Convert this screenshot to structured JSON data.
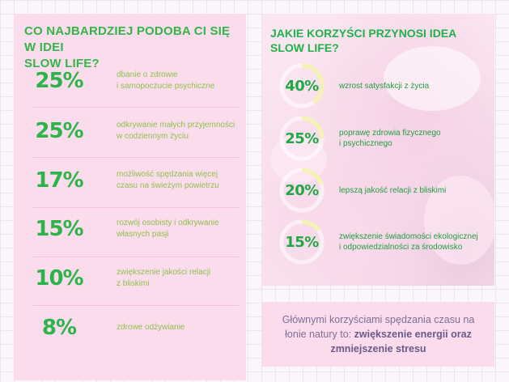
{
  "left": {
    "title_line1": "CO NAJBARDZIEJ PODOBA CI SIĘ W IDEI",
    "title_line2": "SLOW LIFE?",
    "rows": [
      {
        "pct": "25%",
        "line1": "dbanie o zdrowie",
        "line2": "i samopoczucie psychiczne"
      },
      {
        "pct": "25%",
        "line1": "odkrywanie małych przyjemności",
        "line2": "w codziennym życiu"
      },
      {
        "pct": "17%",
        "line1": "możliwość spędzania więcej",
        "line2": "czasu na świeżym powietrzu"
      },
      {
        "pct": "15%",
        "line1": "rozwój osobisty i odkrywanie",
        "line2": "własnych pasji"
      },
      {
        "pct": "10%",
        "line1": "zwiększenie jakości relacji",
        "line2": "z bliskimi"
      },
      {
        "pct": "8%",
        "line1": "zdrowe odżywianie",
        "line2": ""
      }
    ]
  },
  "right": {
    "title": "JAKIE KORZYŚCI PRZYNOSI IDEA SLOW LIFE?",
    "benefits": [
      {
        "pct": "40%",
        "value": 40,
        "line1": "wzrost satysfakcji z życia",
        "line2": ""
      },
      {
        "pct": "25%",
        "value": 25,
        "line1": "poprawę zdrowia fizycznego",
        "line2": "i psychicznego"
      },
      {
        "pct": "20%",
        "value": 20,
        "line1": "lepszą jakość relacji z bliskimi",
        "line2": ""
      },
      {
        "pct": "15%",
        "value": 15,
        "line1": "zwiększenie świadomości ekologicznej",
        "line2": "i odpowiedzialności za środowisko"
      }
    ],
    "ring_color": "#f4f3b4",
    "ring_track": "rgba(255,255,255,0.55)"
  },
  "summary": {
    "line1": "Głównymi korzyściami spędzania czasu na",
    "line2_plain": "łonie natury to: ",
    "line2_bold": "zwiększenie energii oraz",
    "line3_bold": "zmniejszenie stresu"
  },
  "colors": {
    "accent_green": "#2cb34a",
    "light_green": "#8fc14d",
    "panel_pink": "#fbdcec",
    "summary_text": "#7d6f96"
  }
}
